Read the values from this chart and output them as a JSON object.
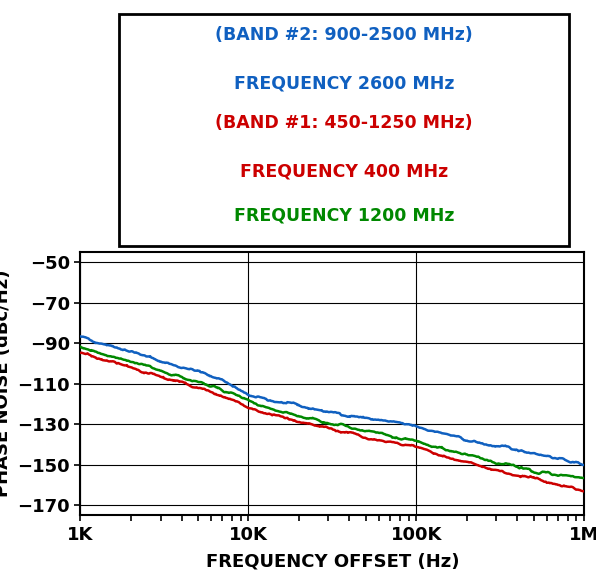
{
  "xlabel": "FREQUENCY OFFSET (Hz)",
  "ylabel": "PHASE NOISE (dBc/Hz)",
  "xlim_log": [
    3,
    6
  ],
  "ylim": [
    -175,
    -45
  ],
  "yticks": [
    -170,
    -150,
    -130,
    -110,
    -90,
    -70,
    -50
  ],
  "xtick_labels": [
    "1K",
    "10K",
    "100K",
    "1M"
  ],
  "xtick_positions": [
    1000,
    10000,
    100000,
    1000000
  ],
  "legend": {
    "line1": "(BAND #2: 900-2500 MHz)",
    "line2": "FREQUENCY 2600 MHz",
    "line3": "(BAND #1: 450-1250 MHz)",
    "line4": "FREQUENCY 400 MHz",
    "line5": "FREQUENCY 1200 MHz",
    "color1": "#1060C0",
    "color2": "#1060C0",
    "color3": "#CC0000",
    "color4": "#CC0000",
    "color5": "#008800"
  },
  "blue_curve": {
    "color": "#1060C0",
    "x": [
      1000,
      1500,
      2000,
      3000,
      5000,
      7000,
      10000,
      15000,
      20000,
      30000,
      50000,
      70000,
      100000,
      150000,
      200000,
      300000,
      500000,
      700000,
      1000000
    ],
    "y": [
      -87,
      -91,
      -94,
      -99,
      -104,
      -108,
      -116,
      -119,
      -121,
      -124,
      -127,
      -129,
      -131,
      -135,
      -138,
      -141,
      -144,
      -147,
      -150
    ]
  },
  "red_curve": {
    "color": "#CC0000",
    "x": [
      1000,
      1500,
      2000,
      3000,
      5000,
      7000,
      10000,
      15000,
      20000,
      30000,
      50000,
      70000,
      100000,
      150000,
      200000,
      300000,
      500000,
      700000,
      1000000
    ],
    "y": [
      -95,
      -99,
      -102,
      -107,
      -112,
      -116,
      -122,
      -126,
      -129,
      -132,
      -136,
      -139,
      -141,
      -146,
      -149,
      -153,
      -157,
      -160,
      -163
    ]
  },
  "green_curve": {
    "color": "#008800",
    "x": [
      1000,
      1500,
      2000,
      3000,
      5000,
      7000,
      10000,
      15000,
      20000,
      30000,
      50000,
      70000,
      100000,
      150000,
      200000,
      300000,
      500000,
      700000,
      1000000
    ],
    "y": [
      -92,
      -96,
      -99,
      -104,
      -109,
      -113,
      -119,
      -123,
      -126,
      -129,
      -133,
      -136,
      -138,
      -143,
      -145,
      -149,
      -153,
      -155,
      -157
    ]
  }
}
